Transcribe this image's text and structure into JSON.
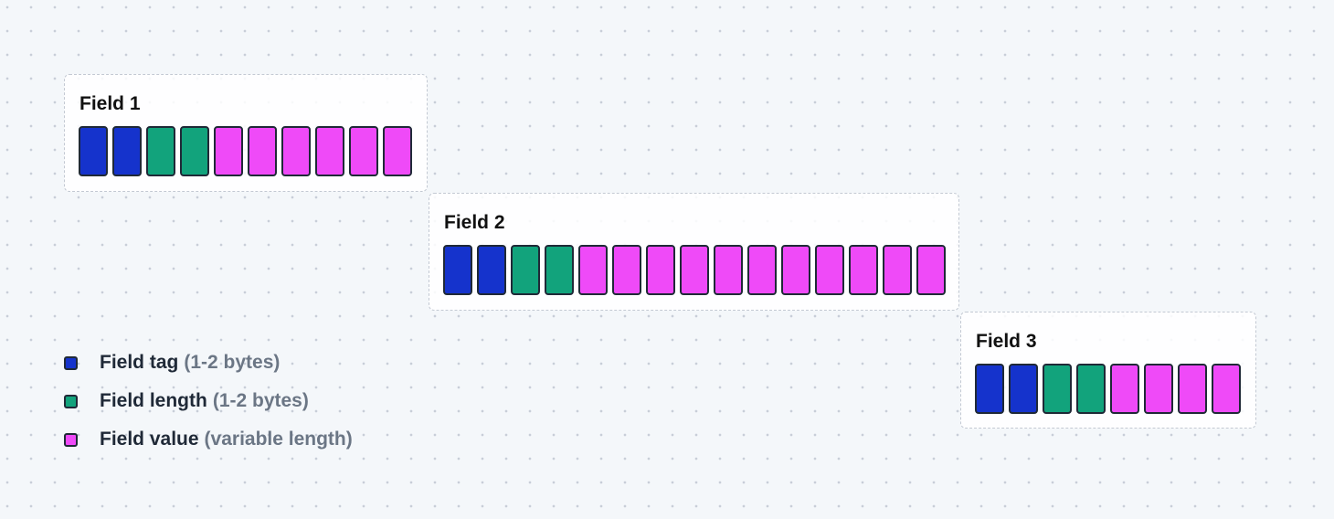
{
  "colors": {
    "tag": "#1533cc",
    "length": "#12a37c",
    "value": "#ef4af8"
  },
  "fields": [
    {
      "title": "Field 1",
      "tag_bytes": 2,
      "length_bytes": 2,
      "value_bytes": 6
    },
    {
      "title": "Field 2",
      "tag_bytes": 2,
      "length_bytes": 2,
      "value_bytes": 11
    },
    {
      "title": "Field 3",
      "tag_bytes": 2,
      "length_bytes": 2,
      "value_bytes": 4
    }
  ],
  "legend": [
    {
      "key": "tag",
      "label": "Field tag",
      "note": "(1-2 bytes)"
    },
    {
      "key": "length",
      "label": "Field length",
      "note": "(1-2 bytes)"
    },
    {
      "key": "value",
      "label": "Field value",
      "note": "(variable length)"
    }
  ]
}
